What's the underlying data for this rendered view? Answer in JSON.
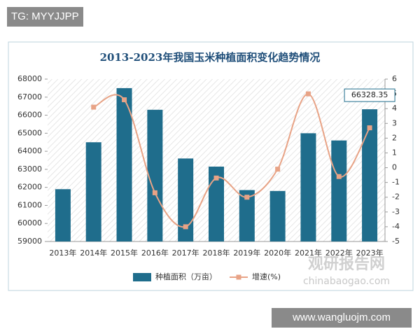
{
  "chart_data": {
    "type": "bar_line",
    "title": "2013-2023年我国玉米种植面积变化趋势情况",
    "categories": [
      "2013年",
      "2014年",
      "2015年",
      "2016年",
      "2017年",
      "2018年",
      "2019年",
      "2020年",
      "2021年",
      "2022年",
      "2023年"
    ],
    "series": [
      {
        "name": "种植面积（万亩）",
        "type": "bar",
        "color": "#1f6d8c",
        "values": [
          61900,
          64500,
          67500,
          66300,
          63600,
          63150,
          61850,
          61800,
          65000,
          64600,
          66328.35
        ]
      },
      {
        "name": "增速(%)",
        "type": "line",
        "axis": "y2",
        "color": "#e8a386",
        "values": [
          null,
          4.1,
          4.6,
          -1.7,
          -4.0,
          -0.7,
          -2.0,
          -0.1,
          5.0,
          -0.6,
          2.7
        ]
      }
    ],
    "ylim": [
      59000,
      68000
    ],
    "yticks": [
      59000,
      60000,
      61000,
      62000,
      63000,
      64000,
      65000,
      66000,
      67000,
      68000
    ],
    "y2lim": [
      -5,
      6
    ],
    "y2ticks": [
      -5,
      -4,
      -3,
      -2,
      -1,
      0,
      1,
      2,
      3,
      4,
      5,
      6
    ],
    "legend": "bottom"
  },
  "watermarks": {
    "top": "TG: MYYJJPP",
    "logo": "观研报告网",
    "logo_url": "chinabaogao.com",
    "bottom": "www.wangluojm.com"
  }
}
